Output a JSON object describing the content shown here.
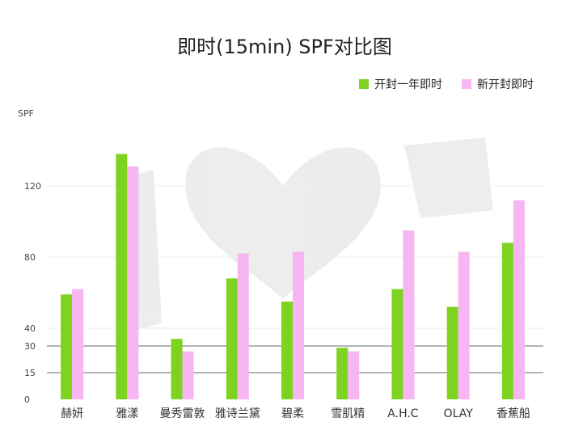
{
  "chart_data": {
    "type": "bar",
    "title": "即时(15min) SPF对比图",
    "ylabel": "SPF",
    "categories": [
      "赫妍",
      "雅漾",
      "曼秀雷敦",
      "雅诗兰黛",
      "碧柔",
      "雪肌精",
      "A.H.C",
      "OLAY",
      "香蕉船"
    ],
    "series": [
      {
        "name": "开封一年即时",
        "color": "#7ed321",
        "values": [
          59,
          138,
          34,
          68,
          55,
          29,
          62,
          52,
          88
        ]
      },
      {
        "name": "新开封即时",
        "color": "#f7b6f2",
        "values": [
          62,
          131,
          27,
          82,
          83,
          27,
          95,
          83,
          112
        ]
      }
    ],
    "yticks": [
      0,
      15,
      30,
      40,
      80,
      120
    ],
    "reference_lines": [
      15,
      30
    ],
    "ylim": [
      0,
      145
    ],
    "legend_position": "top-right"
  }
}
